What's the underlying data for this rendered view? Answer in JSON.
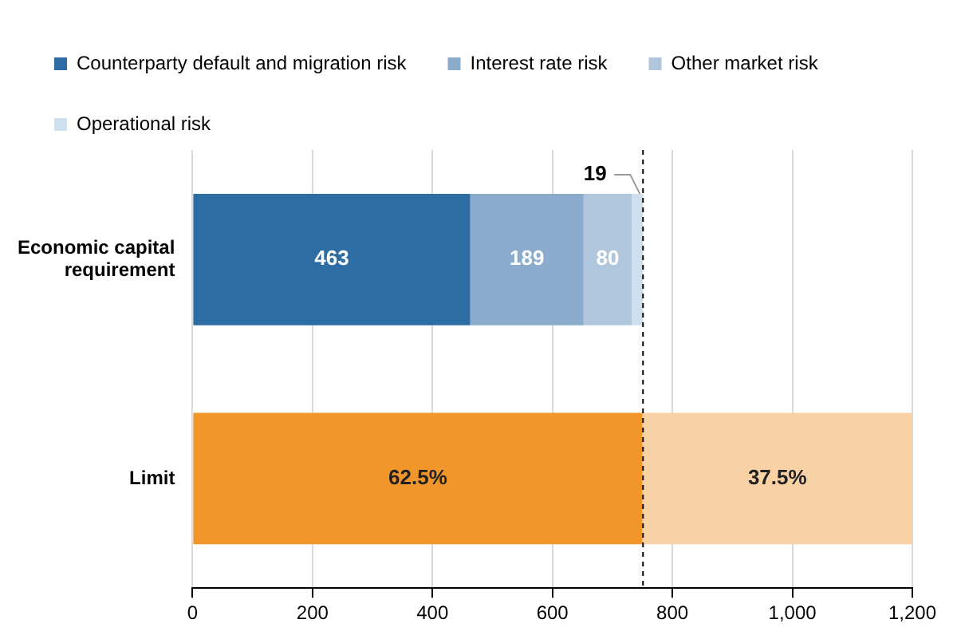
{
  "chart_data": {
    "type": "bar",
    "orientation": "horizontal",
    "stacked": true,
    "categories": [
      "Economic capital requirement",
      "Limit"
    ],
    "series": [
      {
        "name": "Counterparty default and migration risk",
        "color": "#2e6ca4",
        "values": [
          463,
          null
        ],
        "value_labels": [
          "463",
          null
        ]
      },
      {
        "name": "Interest rate risk",
        "color": "#8aabcb",
        "values": [
          189,
          null
        ],
        "value_labels": [
          "189",
          null
        ]
      },
      {
        "name": "Other market risk",
        "color": "#b0c6dd",
        "values": [
          80,
          null
        ],
        "value_labels": [
          "80",
          null
        ]
      },
      {
        "name": "Operational risk",
        "color": "#d0dfed",
        "values": [
          19,
          null
        ],
        "value_labels": [
          "19",
          null
        ]
      },
      {
        "color": "#f0962a",
        "values": [
          null,
          750
        ]
      },
      {
        "color": "#f8d2a5",
        "values": [
          null,
          450
        ]
      }
    ],
    "annotations": [
      "62.5%",
      "37.5%"
    ],
    "xlim": [
      0,
      1200
    ],
    "xticks": [
      0,
      200,
      400,
      600,
      800,
      {
        "value": 1000,
        "label": "1,000"
      },
      {
        "value": 1200,
        "label": "1,200"
      }
    ],
    "grid": "x",
    "legend": "top",
    "ref_lines": [
      {
        "axis": "x",
        "value": 751,
        "color": "#000000",
        "line_style": "dashed"
      }
    ]
  }
}
